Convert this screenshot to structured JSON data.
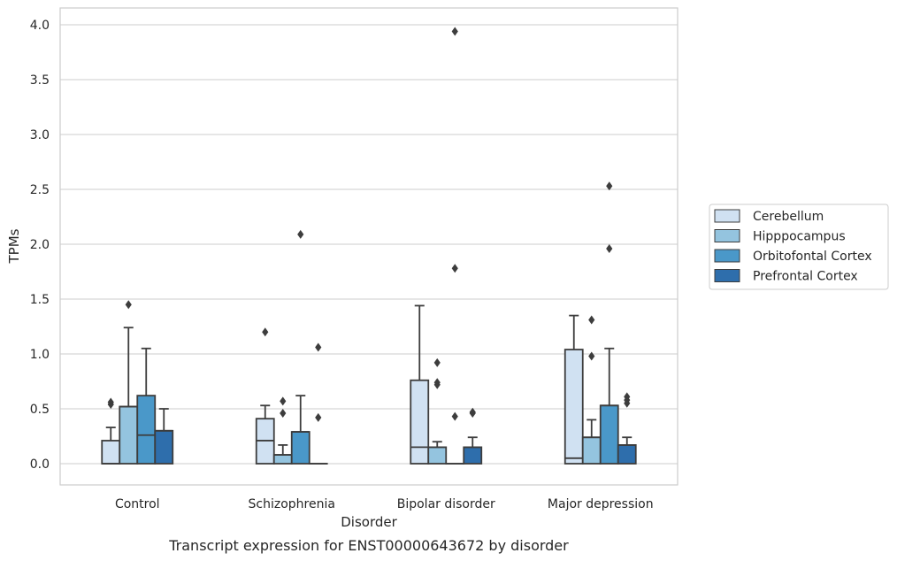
{
  "chart_data": {
    "type": "box",
    "xlabel": "Disorder",
    "ylabel": "TPMs",
    "caption": "Transcript expression for ENST00000643672 by disorder",
    "ylim": [
      -0.19,
      4.15
    ],
    "yticks": [
      "0.0",
      "0.5",
      "1.0",
      "1.5",
      "2.0",
      "2.5",
      "3.0",
      "3.5",
      "4.0"
    ],
    "grid": "horizontal",
    "legend_position": "right",
    "categories": [
      "Control",
      "Schizophrenia",
      "Bipolar disorder",
      "Major depression"
    ],
    "series": [
      {
        "name": "Cerebellum",
        "color": "#d0e1f2",
        "boxes": [
          {
            "q1": 0,
            "median": 0,
            "q3": 0.21,
            "whisker_low": 0,
            "whisker_high": 0.33,
            "outliers": [
              0.54,
              0.56
            ]
          },
          {
            "q1": 0,
            "median": 0.21,
            "q3": 0.41,
            "whisker_low": 0,
            "whisker_high": 0.53,
            "outliers": [
              1.2
            ]
          },
          {
            "q1": 0,
            "median": 0.15,
            "q3": 0.76,
            "whisker_low": 0,
            "whisker_high": 1.44,
            "outliers": []
          },
          {
            "q1": 0,
            "median": 0.05,
            "q3": 1.04,
            "whisker_low": 0,
            "whisker_high": 1.35,
            "outliers": []
          }
        ]
      },
      {
        "name": "Hipppocampus",
        "color": "#94c4df",
        "boxes": [
          {
            "q1": 0,
            "median": 0.52,
            "q3": 0.52,
            "whisker_low": 0,
            "whisker_high": 1.24,
            "outliers": [
              1.45
            ]
          },
          {
            "q1": 0,
            "median": 0.08,
            "q3": 0.08,
            "whisker_low": 0,
            "whisker_high": 0.17,
            "outliers": [
              0.46,
              0.57
            ]
          },
          {
            "q1": 0,
            "median": 0.15,
            "q3": 0.15,
            "whisker_low": 0,
            "whisker_high": 0.2,
            "outliers": [
              0.72,
              0.74,
              0.92
            ]
          },
          {
            "q1": 0,
            "median": 0.24,
            "q3": 0.24,
            "whisker_low": 0,
            "whisker_high": 0.4,
            "outliers": [
              0.98,
              1.31
            ]
          }
        ]
      },
      {
        "name": "Orbitofontal Cortex",
        "color": "#4a98c9",
        "boxes": [
          {
            "q1": 0,
            "median": 0.26,
            "q3": 0.62,
            "whisker_low": 0,
            "whisker_high": 1.05,
            "outliers": []
          },
          {
            "q1": 0,
            "median": 0.29,
            "q3": 0.29,
            "whisker_low": 0,
            "whisker_high": 0.62,
            "outliers": [
              2.09
            ]
          },
          {
            "q1": 0,
            "median": 0,
            "q3": 0,
            "whisker_low": 0,
            "whisker_high": 0,
            "outliers": [
              0.43,
              1.78,
              3.94
            ]
          },
          {
            "q1": 0,
            "median": 0.53,
            "q3": 0.53,
            "whisker_low": 0,
            "whisker_high": 1.05,
            "outliers": [
              1.96,
              2.53
            ]
          }
        ]
      },
      {
        "name": "Prefrontal Cortex",
        "color": "#2e6eac",
        "boxes": [
          {
            "q1": 0,
            "median": 0.3,
            "q3": 0.3,
            "whisker_low": 0,
            "whisker_high": 0.5,
            "outliers": []
          },
          {
            "q1": 0,
            "median": 0,
            "q3": 0,
            "whisker_low": 0,
            "whisker_high": 0,
            "outliers": [
              0.42,
              1.06
            ]
          },
          {
            "q1": 0,
            "median": 0.15,
            "q3": 0.15,
            "whisker_low": 0,
            "whisker_high": 0.24,
            "outliers": [
              0.46,
              0.47
            ]
          },
          {
            "q1": 0,
            "median": 0.17,
            "q3": 0.17,
            "whisker_low": 0,
            "whisker_high": 0.24,
            "outliers": [
              0.55,
              0.58,
              0.61
            ]
          }
        ]
      }
    ]
  }
}
